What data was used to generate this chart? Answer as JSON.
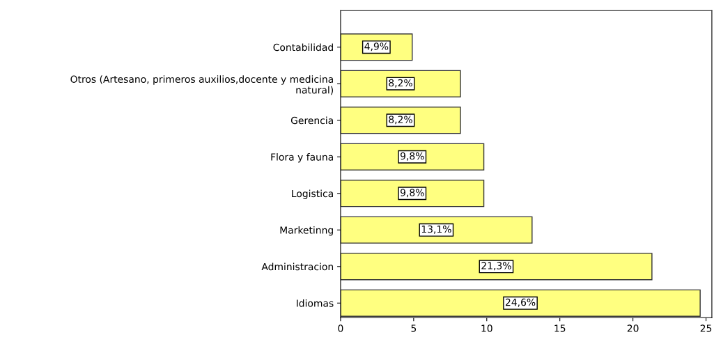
{
  "chart_data": {
    "type": "bar",
    "orientation": "horizontal",
    "categories": [
      "Contabilidad",
      "Otros (Artesano, primeros auxilios,docente y medicina\nnatural)",
      "Gerencia",
      "Flora y fauna",
      "Logistica",
      "Marketinng",
      "Administracion",
      "Idiomas"
    ],
    "values": [
      4.9,
      8.2,
      8.2,
      9.8,
      9.8,
      13.1,
      21.3,
      24.6
    ],
    "value_labels": [
      "4,9%",
      "8,2%",
      "8,2%",
      "9,8%",
      "9,8%",
      "13,1%",
      "21,3%",
      "24,6%"
    ],
    "color": "#ffff80",
    "xlim": [
      0,
      25.4
    ],
    "xticks": [
      0,
      5,
      10,
      15,
      20,
      25
    ],
    "grid": false,
    "legend": false
  }
}
